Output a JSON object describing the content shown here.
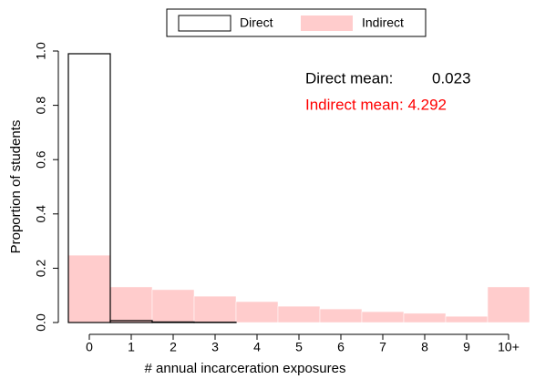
{
  "chart_data": {
    "type": "bar",
    "categories": [
      "0",
      "1",
      "2",
      "3",
      "4",
      "5",
      "6",
      "7",
      "8",
      "9",
      "10+"
    ],
    "series": [
      {
        "name": "Indirect",
        "color": "#ffcccc",
        "values": [
          0.248,
          0.131,
          0.121,
          0.097,
          0.077,
          0.06,
          0.05,
          0.04,
          0.034,
          0.023,
          0.131
        ]
      },
      {
        "name": "Direct",
        "color": "#000000",
        "values": [
          0.99,
          0.007,
          0.002,
          0.001,
          0,
          0,
          0,
          0,
          0,
          0,
          0
        ]
      }
    ],
    "legend_order": [
      "Direct",
      "Indirect"
    ],
    "xlabel": "# annual incarceration exposures",
    "ylabel": "Proportion of students",
    "ylim": [
      0,
      1.0
    ],
    "yticks": [
      {
        "value": 0,
        "label": "0.0"
      },
      0.2,
      0.4,
      0.6,
      0.8,
      {
        "value": 1,
        "label": "1.0"
      }
    ],
    "annotations": {
      "direct_label": "Direct mean:",
      "direct_value": "0.023",
      "indirect": "Indirect mean: 4.292",
      "indirect_color": "#ff0000"
    }
  }
}
